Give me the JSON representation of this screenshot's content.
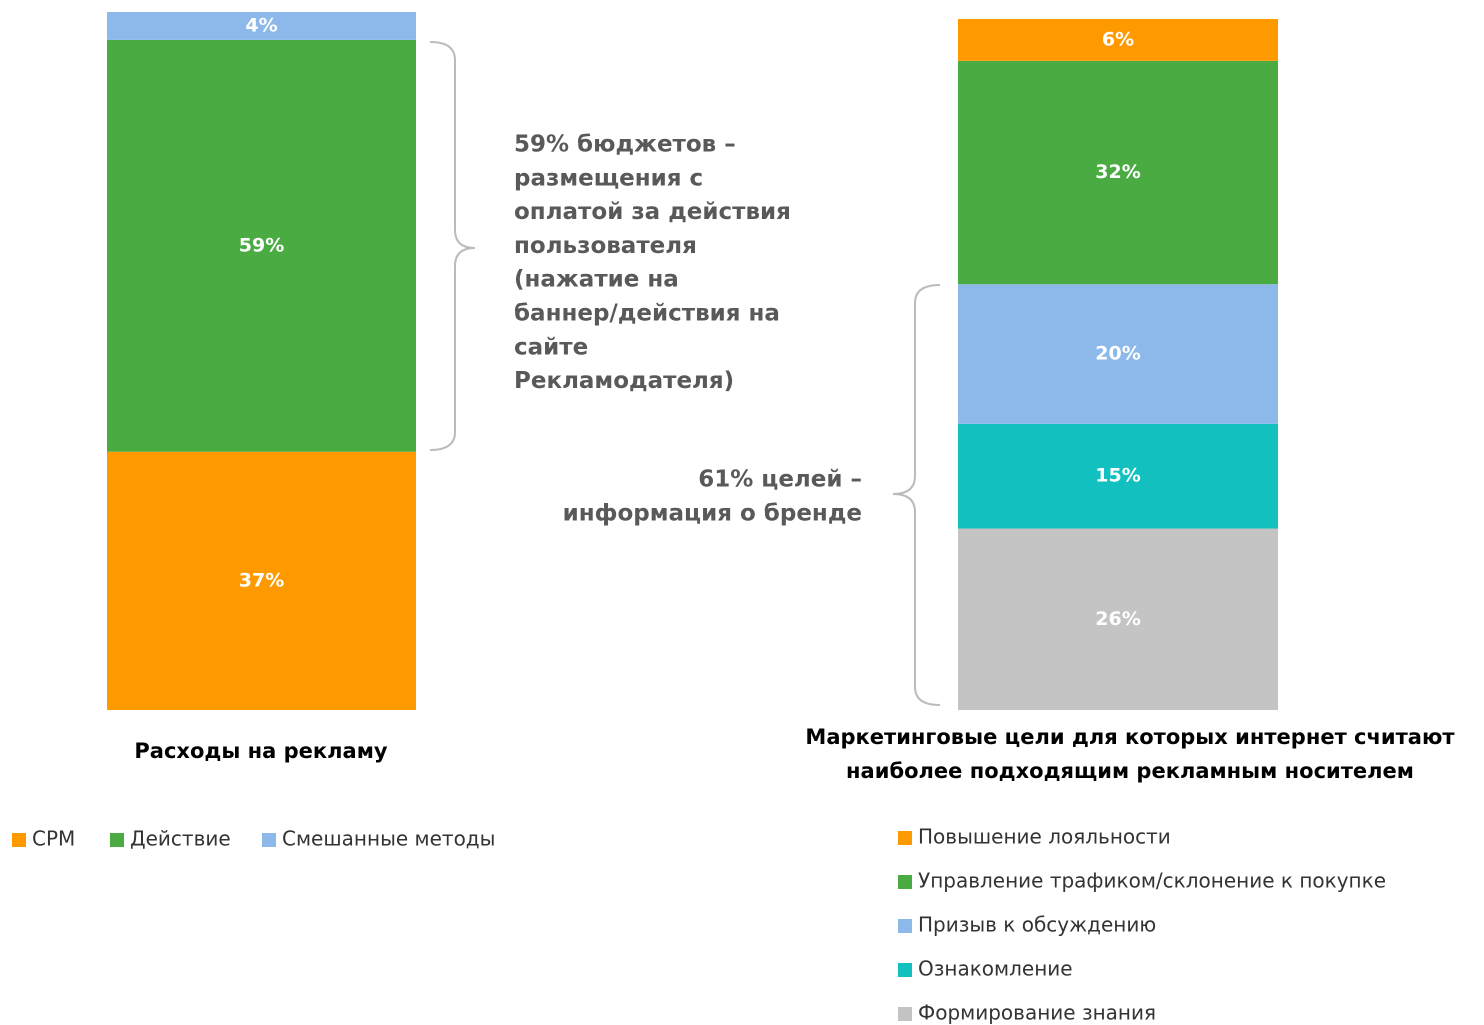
{
  "chart_data": [
    {
      "type": "stacked-bar",
      "xlabel": [
        "Расходы на рекламу"
      ],
      "ylim": [
        0,
        100
      ],
      "legend": "bottom-horizontal",
      "annotation": [
        "59% бюджетов –",
        "размещения с",
        "оплатой за действия",
        "пользователя",
        "(нажатие на",
        "баннер/действия на",
        "сайте",
        "Рекламодателя)"
      ],
      "series": [
        {
          "name": "CPM",
          "color": "#ff9900",
          "values": [
            37
          ],
          "value_labels": [
            "37%"
          ]
        },
        {
          "name": "Действие",
          "color": "#4aab42",
          "values": [
            59
          ],
          "value_labels": [
            "59%"
          ]
        },
        {
          "name": "Смешанные методы",
          "color": "#8db9ea",
          "values": [
            4
          ],
          "value_labels": [
            "4%"
          ]
        }
      ]
    },
    {
      "type": "stacked-bar",
      "xlabel": [
        "Маркетинговые цели для которых интернет считают",
        "наиболее подходящим рекламным носителем"
      ],
      "ylim": [
        0,
        100
      ],
      "legend": "bottom-vertical",
      "annotation": [
        "61% целей –",
        "информация о бренде"
      ],
      "series": [
        {
          "name": "Повышение лояльности",
          "color": "#ff9900",
          "values": [
            6
          ],
          "value_labels": [
            "6%"
          ]
        },
        {
          "name": "Управление трафиком/склонение к покупке",
          "color": "#4aab42",
          "values": [
            32
          ],
          "value_labels": [
            "32%"
          ]
        },
        {
          "name": "Призыв к обсуждению",
          "color": "#8db9ea",
          "values": [
            20
          ],
          "value_labels": [
            "20%"
          ]
        },
        {
          "name": "Ознакомление",
          "color": "#13c0c0",
          "values": [
            15
          ],
          "value_labels": [
            "15%"
          ]
        },
        {
          "name": "Формирование знания",
          "color": "#c4c4c4",
          "values": [
            26
          ],
          "value_labels": [
            "26%"
          ]
        }
      ]
    }
  ]
}
